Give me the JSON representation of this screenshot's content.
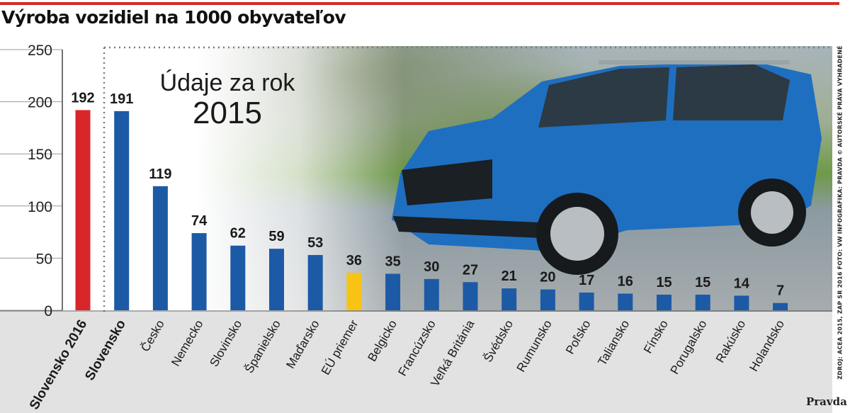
{
  "title": "Výroba vozidiel na 1000 obyvateľov",
  "annotation": {
    "line1": "Údaje za rok",
    "line2": "2015"
  },
  "credit": "ZDROJ: ACEA 2015, ZAP SR 2016 FOTO: VW INFOGRAFIKA: PRAVDA © AUTORSKÉ PRÁVA VYHRADENÉ",
  "logo": "Pravda",
  "colors": {
    "highlight": "#d9262b",
    "default": "#1c5aa6",
    "eu": "#f8c312"
  },
  "chart_data": {
    "type": "bar",
    "title": "Výroba vozidiel na 1000 obyvateľov",
    "xlabel": "",
    "ylabel": "",
    "ylim": [
      0,
      250
    ],
    "yticks": [
      0,
      50,
      100,
      150,
      200,
      250
    ],
    "grid": true,
    "categories": [
      "Slovensko 2016",
      "Slovensko",
      "Česko",
      "Nemecko",
      "Slovinsko",
      "Španielsko",
      "Maďarsko",
      "EÚ priemer",
      "Belgicko",
      "Francúzsko",
      "Veľká Británia",
      "Švédsko",
      "Rumunsko",
      "Poľsko",
      "Taliansko",
      "Fínsko",
      "Porugalsko",
      "Rakúsko",
      "Holandsko"
    ],
    "values": [
      192,
      191,
      119,
      74,
      62,
      59,
      53,
      36,
      35,
      30,
      27,
      21,
      20,
      17,
      16,
      15,
      15,
      14,
      7
    ],
    "bar_colors": [
      "#d9262b",
      "#1c5aa6",
      "#1c5aa6",
      "#1c5aa6",
      "#1c5aa6",
      "#1c5aa6",
      "#1c5aa6",
      "#f8c312",
      "#1c5aa6",
      "#1c5aa6",
      "#1c5aa6",
      "#1c5aa6",
      "#1c5aa6",
      "#1c5aa6",
      "#1c5aa6",
      "#1c5aa6",
      "#1c5aa6",
      "#1c5aa6",
      "#1c5aa6"
    ],
    "bold_categories": [
      "Slovensko 2016",
      "Slovensko"
    ]
  }
}
